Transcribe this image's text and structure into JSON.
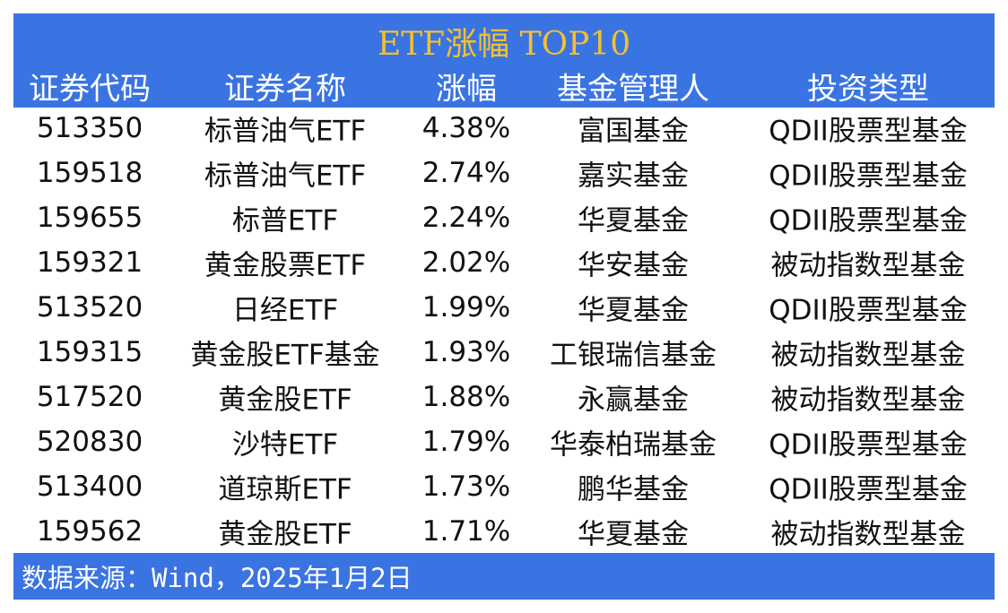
{
  "table": {
    "title": "ETF涨幅 TOP10",
    "header": [
      "证券代码",
      "证券名称",
      "涨幅",
      "基金管理人",
      "投资类型"
    ],
    "rows": [
      [
        "513350",
        "标普油气ETF",
        "4.38%",
        "富国基金",
        "QDII股票型基金"
      ],
      [
        "159518",
        "标普油气ETF",
        "2.74%",
        "嘉实基金",
        "QDII股票型基金"
      ],
      [
        "159655",
        "标普ETF",
        "2.24%",
        "华夏基金",
        "QDII股票型基金"
      ],
      [
        "159321",
        "黄金股票ETF",
        "2.02%",
        "华安基金",
        "被动指数型基金"
      ],
      [
        "513520",
        "日经ETF",
        "1.99%",
        "华夏基金",
        "QDII股票型基金"
      ],
      [
        "159315",
        "黄金股ETF基金",
        "1.93%",
        "工银瑞信基金",
        "被动指数型基金"
      ],
      [
        "517520",
        "黄金股ETF",
        "1.88%",
        "永赢基金",
        "被动指数型基金"
      ],
      [
        "520830",
        "沙特ETF",
        "1.79%",
        "华泰柏瑞基金",
        "QDII股票型基金"
      ],
      [
        "513400",
        "道琼斯ETF",
        "1.73%",
        "鹏华基金",
        "QDII股票型基金"
      ],
      [
        "159562",
        "黄金股ETF",
        "1.71%",
        "华夏基金",
        "被动指数型基金"
      ]
    ],
    "source": "数据来源：Wind，2025年1月2日"
  }
}
